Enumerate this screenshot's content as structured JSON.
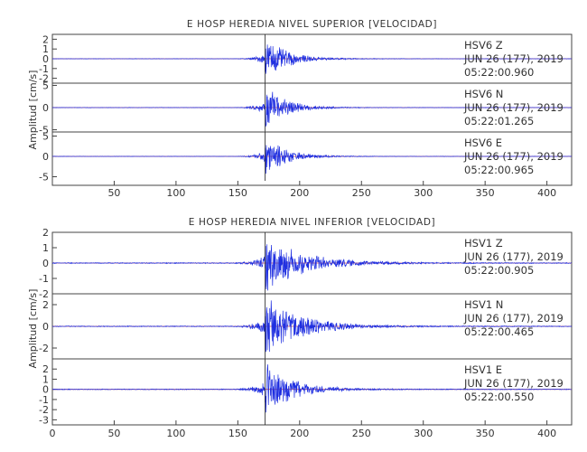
{
  "chart_data": [
    {
      "type": "line",
      "title": "E HOSP HEREDIA NIVEL SUPERIOR [VELOCIDAD]",
      "ylabel": "Amplitud [cm/s]",
      "xlim": [
        0,
        420
      ],
      "x_ticks": [
        "50",
        "100",
        "150",
        "200",
        "250",
        "300",
        "350",
        "400"
      ],
      "grid": false,
      "traces": [
        {
          "station": "HSV6",
          "component": "Z",
          "date": "JUN 26 (177), 2019",
          "time": "05:22:00.960",
          "ylim": [
            -2.5,
            2.5
          ],
          "y_ticks": [
            "-2",
            "-1",
            "0",
            "1",
            "2"
          ],
          "wave": {
            "onset": 145,
            "peak_x": 172,
            "peak_amplitude": 2.2,
            "decay": 18,
            "noise_amplitude": 0.02
          }
        },
        {
          "station": "HSV6",
          "component": "N",
          "date": "JUN 26 (177), 2019",
          "time": "05:22:01.265",
          "ylim": [
            -5.5,
            5.5
          ],
          "y_ticks": [
            "-5",
            "0",
            "5"
          ],
          "wave": {
            "onset": 145,
            "peak_x": 172,
            "peak_amplitude": 5.3,
            "decay": 16,
            "noise_amplitude": 0.05
          }
        },
        {
          "station": "HSV6",
          "component": "E",
          "date": "JUN 26 (177), 2019",
          "time": "05:22:00.965",
          "ylim": [
            -6,
            6
          ],
          "y_ticks": [
            "-5",
            "0",
            "5"
          ],
          "wave": {
            "onset": 145,
            "peak_x": 172,
            "peak_amplitude": 5.5,
            "decay": 16,
            "noise_amplitude": 0.05
          }
        }
      ]
    },
    {
      "type": "line",
      "title": "E HOSP HEREDIA NIVEL INFERIOR [VELOCIDAD]",
      "ylabel": "Amplitud [cm/s]",
      "xlim": [
        0,
        420
      ],
      "x_ticks": [
        "0",
        "50",
        "100",
        "150",
        "200",
        "250",
        "300",
        "350",
        "400"
      ],
      "grid": false,
      "traces": [
        {
          "station": "HSV1",
          "component": "Z",
          "date": "JUN 26 (177), 2019",
          "time": "05:22:00.905",
          "ylim": [
            -2,
            2
          ],
          "y_ticks": [
            "-2",
            "-1",
            "0",
            "1",
            "2"
          ],
          "wave": {
            "onset": 140,
            "peak_x": 172,
            "peak_amplitude": 1.9,
            "decay": 30,
            "noise_amplitude": 0.03
          }
        },
        {
          "station": "HSV1",
          "component": "N",
          "date": "JUN 26 (177), 2019",
          "time": "05:22:00.465",
          "ylim": [
            -3,
            3
          ],
          "y_ticks": [
            "-2",
            "0",
            "2"
          ],
          "wave": {
            "onset": 140,
            "peak_x": 172,
            "peak_amplitude": 2.9,
            "decay": 28,
            "noise_amplitude": 0.04
          }
        },
        {
          "station": "HSV1",
          "component": "E",
          "date": "JUN 26 (177), 2019",
          "time": "05:22:00.550",
          "ylim": [
            -3.5,
            3
          ],
          "y_ticks": [
            "-3",
            "-2",
            "-1",
            "0",
            "1",
            "2"
          ],
          "wave": {
            "onset": 140,
            "peak_x": 172,
            "peak_amplitude": 2.7,
            "decay": 22,
            "noise_amplitude": 0.04
          }
        }
      ]
    }
  ]
}
